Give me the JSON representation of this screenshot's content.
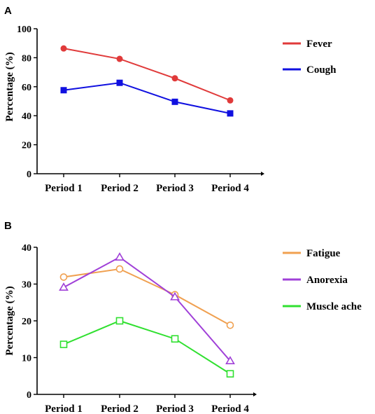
{
  "chart_data": [
    {
      "panel": "A",
      "type": "line",
      "categories": [
        "Period 1",
        "Period 2",
        "Period 3",
        "Period 4"
      ],
      "ylabel": "Percentage (%)",
      "ylim": [
        0,
        100
      ],
      "yticks": [
        0,
        20,
        40,
        60,
        80,
        100
      ],
      "grid": false,
      "legend_position": "right",
      "series": [
        {
          "name": "Fever",
          "color": "#e03a3a",
          "marker": "filled-circle",
          "values": [
            86.4,
            79.2,
            65.8,
            50.6
          ]
        },
        {
          "name": "Cough",
          "color": "#1010e0",
          "marker": "filled-square",
          "values": [
            57.6,
            62.7,
            49.6,
            41.6
          ]
        }
      ]
    },
    {
      "panel": "B",
      "type": "line",
      "categories": [
        "Period 1",
        "Period 2",
        "Period 3",
        "Period 4"
      ],
      "ylabel": "Percentage (%)",
      "ylim": [
        0,
        40
      ],
      "yticks": [
        0,
        10,
        20,
        30,
        40
      ],
      "grid": false,
      "legend_position": "right",
      "series": [
        {
          "name": "Fatigue",
          "color": "#f0a050",
          "marker": "open-circle",
          "values": [
            31.9,
            34.1,
            27.1,
            18.8
          ]
        },
        {
          "name": "Anorexia",
          "color": "#a040d8",
          "marker": "open-triangle",
          "values": [
            29.1,
            37.3,
            26.5,
            9.1
          ]
        },
        {
          "name": "Muscle ache",
          "color": "#30e030",
          "marker": "open-square",
          "values": [
            13.6,
            20.0,
            15.1,
            5.6
          ]
        }
      ]
    }
  ]
}
